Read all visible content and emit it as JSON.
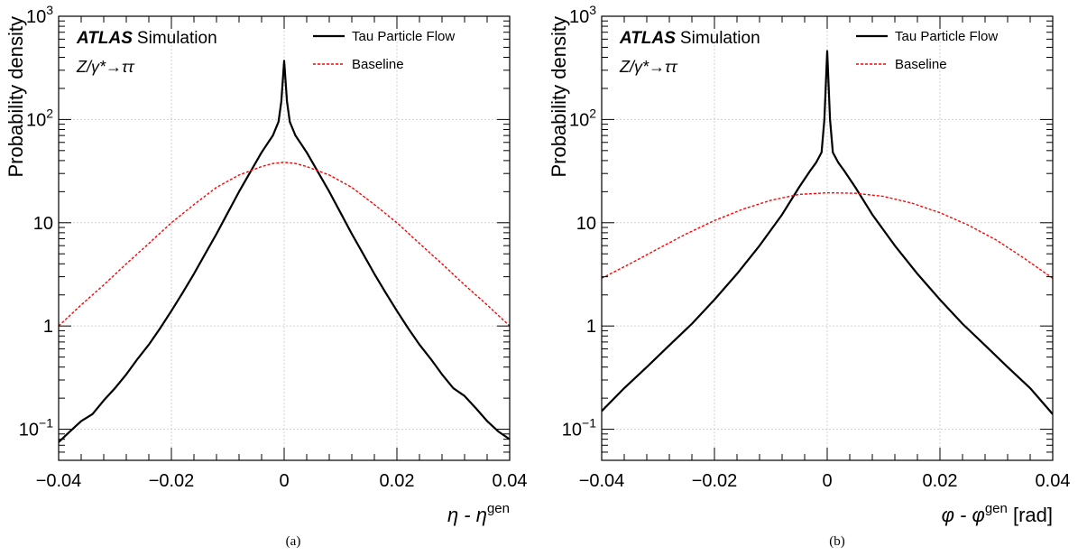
{
  "figure": {
    "captions": [
      "(a)",
      "(b)"
    ]
  },
  "chart_data": [
    {
      "type": "line",
      "experiment": "ATLAS",
      "experiment_suffix": "Simulation",
      "process": "Z/γ*→ττ",
      "xlabel": "η - η^gen",
      "xlabel_main": "η - η",
      "xlabel_sup": "gen",
      "xlabel_unit": "",
      "ylabel": "Probability density",
      "xlim": [
        -0.04,
        0.04
      ],
      "ylim": [
        0.05,
        1000
      ],
      "yscale": "log",
      "grid": true,
      "legend_position": "top-right",
      "x_ticks": [
        -0.04,
        -0.02,
        0,
        0.02,
        0.04
      ],
      "x_tick_labels": [
        "−0.04",
        "−0.02",
        "0",
        "0.02",
        "0.04"
      ],
      "y_ticks": [
        0.1,
        1,
        10,
        100,
        1000
      ],
      "y_tick_labels": [
        {
          "base": "10",
          "exp": "−1"
        },
        {
          "base": "1",
          "exp": ""
        },
        {
          "base": "10",
          "exp": ""
        },
        {
          "base": "10",
          "exp": "2"
        },
        {
          "base": "10",
          "exp": "3"
        }
      ],
      "series": [
        {
          "name": "Tau Particle Flow",
          "color": "#000000",
          "style": "solid",
          "x": [
            -0.04,
            -0.038,
            -0.036,
            -0.034,
            -0.032,
            -0.03,
            -0.028,
            -0.026,
            -0.024,
            -0.022,
            -0.02,
            -0.018,
            -0.016,
            -0.014,
            -0.012,
            -0.01,
            -0.008,
            -0.006,
            -0.004,
            -0.003,
            -0.002,
            -0.001,
            -0.0005,
            0,
            0.0005,
            0.001,
            0.002,
            0.003,
            0.004,
            0.006,
            0.008,
            0.01,
            0.012,
            0.014,
            0.016,
            0.018,
            0.02,
            0.022,
            0.024,
            0.026,
            0.028,
            0.03,
            0.032,
            0.034,
            0.036,
            0.038,
            0.04
          ],
          "y": [
            0.075,
            0.095,
            0.12,
            0.14,
            0.19,
            0.25,
            0.34,
            0.48,
            0.66,
            0.95,
            1.4,
            2.1,
            3.2,
            5.0,
            7.8,
            12.5,
            20,
            31,
            48,
            58,
            70,
            95,
            150,
            370,
            150,
            95,
            70,
            58,
            48,
            31,
            20,
            12.5,
            7.8,
            5.0,
            3.2,
            2.1,
            1.4,
            0.95,
            0.66,
            0.48,
            0.34,
            0.25,
            0.21,
            0.16,
            0.12,
            0.095,
            0.08
          ]
        },
        {
          "name": "Baseline",
          "color": "#ff0000",
          "style": "dashed",
          "x": [
            -0.04,
            -0.036,
            -0.032,
            -0.028,
            -0.024,
            -0.02,
            -0.016,
            -0.012,
            -0.008,
            -0.004,
            -0.002,
            0,
            0.002,
            0.004,
            0.008,
            0.012,
            0.016,
            0.02,
            0.024,
            0.028,
            0.032,
            0.036,
            0.04
          ],
          "y": [
            1.0,
            1.6,
            2.5,
            4.0,
            6.3,
            10,
            15,
            22,
            29,
            35,
            37.5,
            38.5,
            37.5,
            35,
            29,
            22,
            15,
            10,
            6.3,
            4.0,
            2.5,
            1.6,
            1.0
          ]
        }
      ]
    },
    {
      "type": "line",
      "experiment": "ATLAS",
      "experiment_suffix": "Simulation",
      "process": "Z/γ*→ττ",
      "xlabel": "φ - φ^gen [rad]",
      "xlabel_main": "φ - φ",
      "xlabel_sup": "gen",
      "xlabel_unit": " [rad]",
      "ylabel": "Probability density",
      "xlim": [
        -0.04,
        0.04
      ],
      "ylim": [
        0.05,
        1000
      ],
      "yscale": "log",
      "grid": true,
      "legend_position": "top-right",
      "x_ticks": [
        -0.04,
        -0.02,
        0,
        0.02,
        0.04
      ],
      "x_tick_labels": [
        "−0.04",
        "−0.02",
        "0",
        "0.02",
        "0.04"
      ],
      "y_ticks": [
        0.1,
        1,
        10,
        100,
        1000
      ],
      "y_tick_labels": [
        {
          "base": "10",
          "exp": "−1"
        },
        {
          "base": "1",
          "exp": ""
        },
        {
          "base": "10",
          "exp": ""
        },
        {
          "base": "10",
          "exp": "2"
        },
        {
          "base": "10",
          "exp": "3"
        }
      ],
      "series": [
        {
          "name": "Tau Particle Flow",
          "color": "#000000",
          "style": "solid",
          "x": [
            -0.04,
            -0.036,
            -0.032,
            -0.028,
            -0.024,
            -0.02,
            -0.016,
            -0.012,
            -0.008,
            -0.005,
            -0.003,
            -0.002,
            -0.001,
            -0.0005,
            0,
            0.0005,
            0.001,
            0.002,
            0.003,
            0.005,
            0.008,
            0.012,
            0.016,
            0.02,
            0.024,
            0.028,
            0.032,
            0.036,
            0.04
          ],
          "y": [
            0.15,
            0.25,
            0.4,
            0.65,
            1.05,
            1.8,
            3.2,
            6.0,
            12,
            22,
            32,
            38,
            48,
            100,
            460,
            100,
            48,
            38,
            32,
            22,
            12,
            6.0,
            3.2,
            1.8,
            1.05,
            0.65,
            0.4,
            0.25,
            0.14
          ]
        },
        {
          "name": "Baseline",
          "color": "#ff0000",
          "style": "dashed",
          "x": [
            -0.04,
            -0.035,
            -0.03,
            -0.025,
            -0.02,
            -0.015,
            -0.01,
            -0.005,
            0,
            0.005,
            0.01,
            0.015,
            0.02,
            0.025,
            0.03,
            0.035,
            0.04
          ],
          "y": [
            2.9,
            4.0,
            5.6,
            7.8,
            10.5,
            13.5,
            16.5,
            18.8,
            19.5,
            19.3,
            18.0,
            15.5,
            12.5,
            9.5,
            6.8,
            4.5,
            2.9
          ]
        }
      ]
    }
  ]
}
